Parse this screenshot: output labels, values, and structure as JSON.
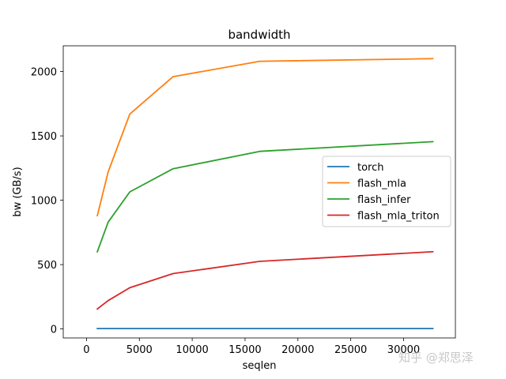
{
  "chart_data": {
    "type": "line",
    "title": "bandwidth",
    "xlabel": "seqlen",
    "ylabel": "bw (GB/s)",
    "xlim": [
      -2200,
      34900
    ],
    "ylim": [
      -70,
      2200
    ],
    "x_ticks": [
      0,
      5000,
      10000,
      15000,
      20000,
      25000,
      30000
    ],
    "y_ticks": [
      0,
      500,
      1000,
      1500,
      2000
    ],
    "legend_position": "center-right",
    "grid": false,
    "x": [
      1024,
      2048,
      4096,
      8192,
      16384,
      32768
    ],
    "series": [
      {
        "name": "torch",
        "color": "#1f77b4",
        "values": [
          3,
          3,
          3,
          3,
          3,
          3
        ]
      },
      {
        "name": "flash_mla",
        "color": "#ff7f0e",
        "values": [
          880,
          1220,
          1670,
          1960,
          2080,
          2100
        ]
      },
      {
        "name": "flash_infer",
        "color": "#2ca02c",
        "values": [
          600,
          830,
          1065,
          1245,
          1380,
          1455
        ]
      },
      {
        "name": "flash_mla_triton",
        "color": "#d62728",
        "values": [
          155,
          220,
          320,
          430,
          525,
          600
        ]
      }
    ]
  },
  "watermark": "知乎 @郑思泽"
}
